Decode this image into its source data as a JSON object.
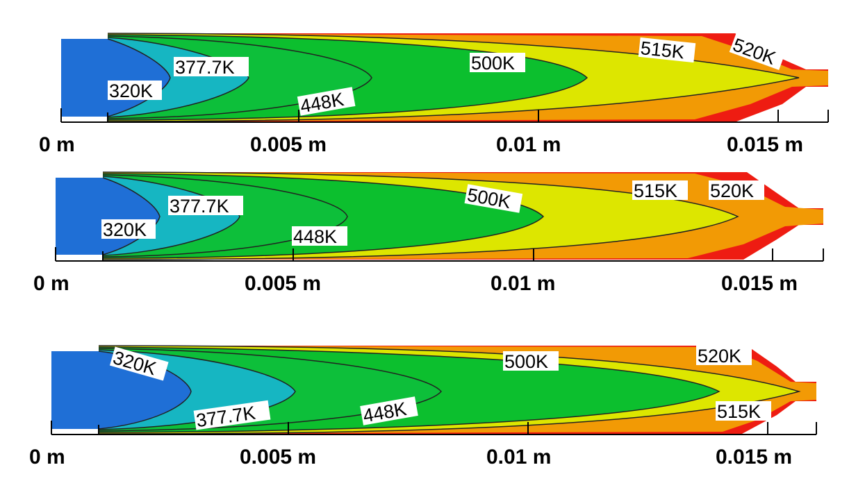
{
  "colors": {
    "inlet": "#1f6fd6",
    "t320": "#16b6c2",
    "t378": "#0dbf3a",
    "t448": "#0cbf2e",
    "t500": "#dde600",
    "t515": "#f29a05",
    "t520": "#ee1c12",
    "line": "#222222",
    "label_bg": "#ffffff"
  },
  "axis_ticks": [
    "0 m",
    "0.005 m",
    "0.01 m",
    "0.015 m"
  ],
  "panels": [
    {
      "labels": {
        "l320": "320K",
        "l378": "377.7K",
        "l448": "448K",
        "l500": "500K",
        "l515": "515K",
        "l520": "520K"
      }
    },
    {
      "labels": {
        "l320": "320K",
        "l378": "377.7K",
        "l448": "448K",
        "l500": "500K",
        "l515": "515K",
        "l520": "520K"
      }
    },
    {
      "labels": {
        "l320": "320K",
        "l378": "377.7K",
        "l448": "448K",
        "l500": "500K",
        "l515": "515K",
        "l520": "520K"
      }
    }
  ]
}
